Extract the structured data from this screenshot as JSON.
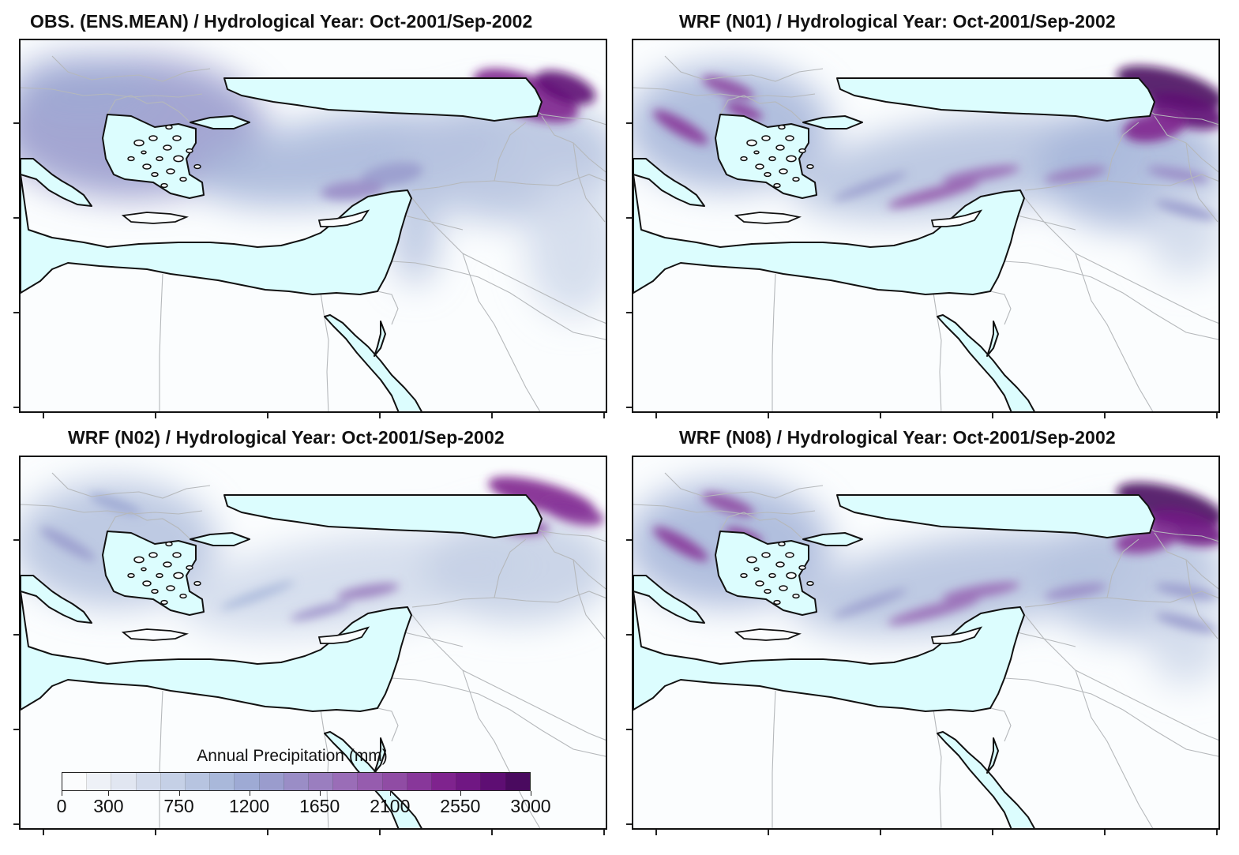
{
  "panels": [
    {
      "id": "obs",
      "title": "OBS. (ENS.MEAN) / Hydrological Year: Oct-2001/Sep-2002"
    },
    {
      "id": "n01",
      "title": "WRF (N01) / Hydrological Year: Oct-2001/Sep-2002"
    },
    {
      "id": "n02",
      "title": "WRF (N02) / Hydrological Year: Oct-2001/Sep-2002"
    },
    {
      "id": "n08",
      "title": "WRF (N08) / Hydrological Year: Oct-2001/Sep-2002"
    }
  ],
  "legend": {
    "title": "Annual Precipitation (mm)",
    "labels": [
      "0",
      "300",
      "750",
      "1200",
      "1650",
      "2100",
      "2550",
      "3000"
    ],
    "label_values": [
      0,
      300,
      750,
      1200,
      1650,
      2100,
      2550,
      3000
    ],
    "min": 0,
    "max": 3000,
    "colors": [
      "#fbfcfd",
      "#eef1f7",
      "#e1e6f1",
      "#d3dbec",
      "#c5d0e6",
      "#b7c4e0",
      "#a9b8da",
      "#9eaad4",
      "#9a9ccd",
      "#9a8dc6",
      "#9a7ebf",
      "#9a6db7",
      "#965cae",
      "#904ca4",
      "#88379a",
      "#7f238e",
      "#701783",
      "#5e0e73",
      "#4a0a5f"
    ]
  },
  "colors": {
    "sea": "#dcfdfe",
    "land": "#fbfdfe",
    "coast": "#111111",
    "border": "#b5b8bb",
    "precip_low": "#b7c4e0",
    "precip_high": "#6a1080"
  }
}
